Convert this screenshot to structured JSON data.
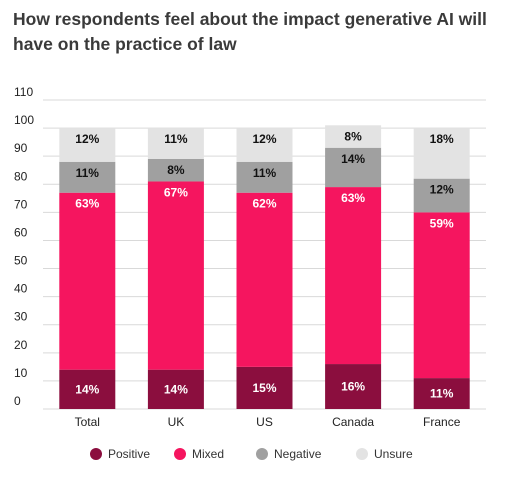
{
  "chart_data": {
    "type": "bar",
    "stacked": true,
    "title": "How respondents feel about the impact generative AI will have on the practice of law",
    "categories": [
      "Total",
      "UK",
      "US",
      "Canada",
      "France"
    ],
    "series": [
      {
        "name": "Positive",
        "values": [
          14,
          14,
          15,
          16,
          11
        ],
        "labels": [
          "14%",
          "14%",
          "15%",
          "16%",
          "11%"
        ],
        "color": "#8b0e3e",
        "label_color": "#ffffff"
      },
      {
        "name": "Mixed",
        "values": [
          63,
          67,
          62,
          63,
          59
        ],
        "labels": [
          "63%",
          "67%",
          "62%",
          "63%",
          "59%"
        ],
        "color": "#f5155f",
        "label_color": "#ffffff"
      },
      {
        "name": "Negative",
        "values": [
          11,
          8,
          11,
          14,
          12
        ],
        "labels": [
          "11%",
          "8%",
          "11%",
          "14%",
          "12%"
        ],
        "color": "#a0a0a0",
        "label_color": "#111111"
      },
      {
        "name": "Unsure",
        "values": [
          12,
          11,
          12,
          8,
          18
        ],
        "labels": [
          "12%",
          "11%",
          "12%",
          "8%",
          "18%"
        ],
        "color": "#e3e3e3",
        "label_color": "#111111"
      }
    ],
    "ylim": [
      0,
      110
    ],
    "yticks": [
      "0",
      "10",
      "20",
      "30",
      "40",
      "50",
      "60",
      "70",
      "80",
      "90",
      "100",
      "110"
    ],
    "grid": true,
    "legend_position": "bottom-center"
  }
}
